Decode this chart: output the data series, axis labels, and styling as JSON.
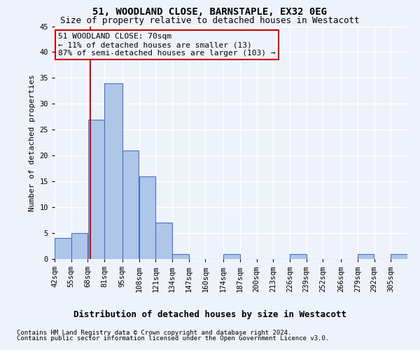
{
  "title": "51, WOODLAND CLOSE, BARNSTAPLE, EX32 0EG",
  "subtitle": "Size of property relative to detached houses in Westacott",
  "xlabel_bottom": "Distribution of detached houses by size in Westacott",
  "ylabel": "Number of detached properties",
  "footer_line1": "Contains HM Land Registry data © Crown copyright and database right 2024.",
  "footer_line2": "Contains public sector information licensed under the Open Government Licence v3.0.",
  "bin_labels": [
    "42sqm",
    "55sqm",
    "68sqm",
    "81sqm",
    "95sqm",
    "108sqm",
    "121sqm",
    "134sqm",
    "147sqm",
    "160sqm",
    "174sqm",
    "187sqm",
    "200sqm",
    "213sqm",
    "226sqm",
    "239sqm",
    "252sqm",
    "266sqm",
    "279sqm",
    "292sqm",
    "305sqm"
  ],
  "bin_edges": [
    42,
    55,
    68,
    81,
    95,
    108,
    121,
    134,
    147,
    160,
    174,
    187,
    200,
    213,
    226,
    239,
    252,
    266,
    279,
    292,
    305,
    318
  ],
  "bar_values": [
    4,
    5,
    27,
    34,
    21,
    16,
    7,
    1,
    0,
    0,
    1,
    0,
    0,
    0,
    1,
    0,
    0,
    0,
    1,
    0,
    1
  ],
  "bar_color": "#aec6e8",
  "bar_edge_color": "#4472c4",
  "ylim": [
    0,
    45
  ],
  "yticks": [
    0,
    5,
    10,
    15,
    20,
    25,
    30,
    35,
    40,
    45
  ],
  "property_size": 70,
  "property_line_color": "#cc0000",
  "annotation_line1": "51 WOODLAND CLOSE: 70sqm",
  "annotation_line2": "← 11% of detached houses are smaller (13)",
  "annotation_line3": "87% of semi-detached houses are larger (103) →",
  "annotation_box_color": "#cc0000",
  "background_color": "#eef2fb",
  "grid_color": "#ffffff",
  "title_fontsize": 10,
  "subtitle_fontsize": 9,
  "ylabel_fontsize": 8,
  "tick_fontsize": 7.5,
  "annotation_fontsize": 8,
  "footer_fontsize": 6.5
}
